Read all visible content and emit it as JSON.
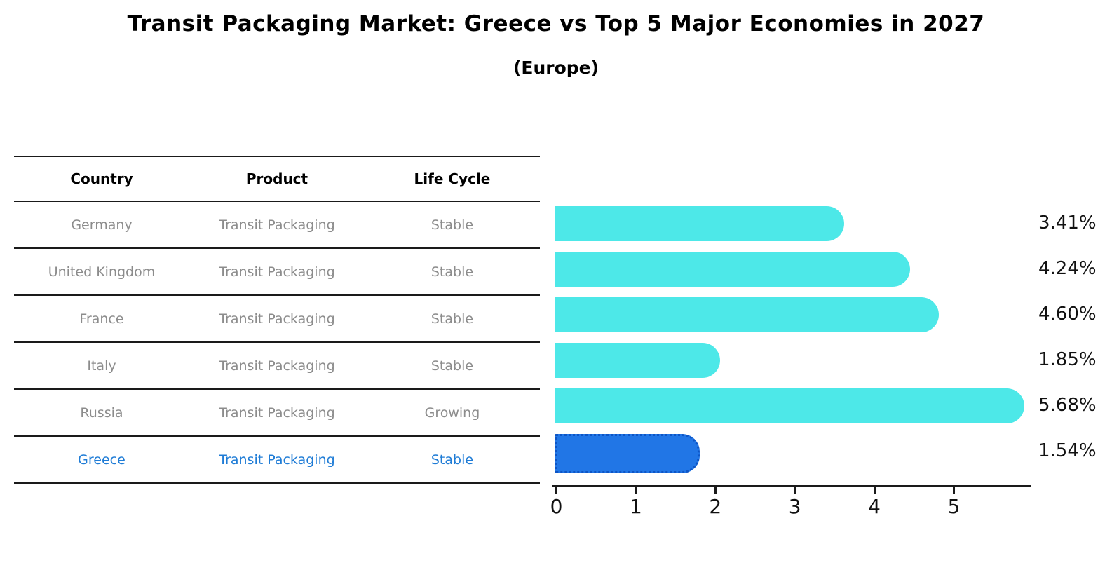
{
  "chart_data": {
    "type": "bar",
    "orientation": "horizontal",
    "title": "Transit Packaging Market: Greece vs Top 5 Major Economies in 2027",
    "subtitle": "(Europe)",
    "categories": [
      "Germany",
      "United Kingdom",
      "France",
      "Italy",
      "Russia",
      "Greece"
    ],
    "values": [
      3.41,
      4.24,
      4.6,
      1.85,
      5.68,
      1.54
    ],
    "value_labels": [
      "3.41%",
      "4.24%",
      "4.60%",
      "1.85%",
      "5.68%",
      "1.54%"
    ],
    "x_ticks": [
      "0",
      "1",
      "2",
      "3",
      "4",
      "5"
    ],
    "xlim": [
      0,
      5.97
    ],
    "grid": false,
    "legend": "none",
    "bar_color": "#4DE8E8",
    "highlight_color": "#2176E6",
    "highlight_border_color": "#0e55c5",
    "highlight_index": 5
  },
  "table": {
    "headers": [
      "Country",
      "Product",
      "Life Cycle"
    ],
    "rows": [
      {
        "country": "Germany",
        "product": "Transit Packaging",
        "life_cycle": "Stable",
        "highlighted": false
      },
      {
        "country": "United Kingdom",
        "product": "Transit Packaging",
        "life_cycle": "Stable",
        "highlighted": false
      },
      {
        "country": "France",
        "product": "Transit Packaging",
        "life_cycle": "Stable",
        "highlighted": false
      },
      {
        "country": "Italy",
        "product": "Transit Packaging",
        "life_cycle": "Stable",
        "highlighted": false
      },
      {
        "country": "Russia",
        "product": "Transit Packaging",
        "life_cycle": "Growing",
        "highlighted": false
      },
      {
        "country": "Greece",
        "product": "Transit Packaging",
        "life_cycle": "Stable",
        "highlighted": true
      }
    ]
  }
}
